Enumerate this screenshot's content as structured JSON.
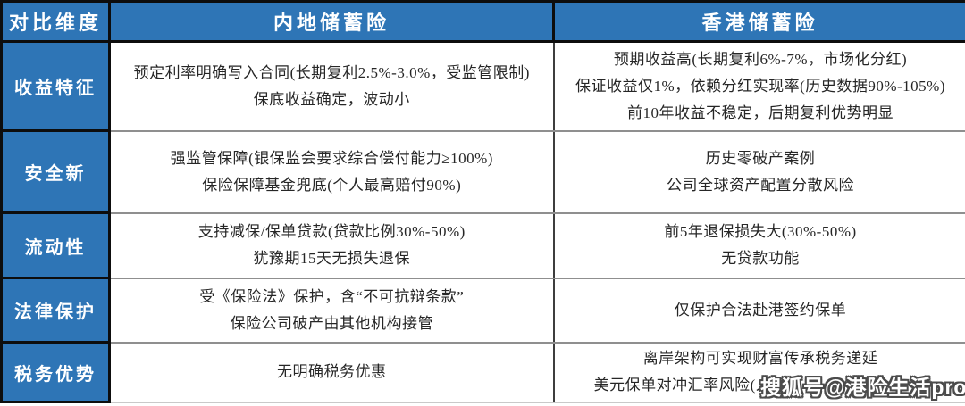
{
  "colors": {
    "header_blue": "#2E75B6",
    "border_dark": "#0D0D0D",
    "divider_gray": "#8F8F8F",
    "body_text": "#262626"
  },
  "table": {
    "header": {
      "dimension": "对比维度",
      "mainland": "内地储蓄险",
      "hongkong": "香港储蓄险"
    },
    "rows": [
      {
        "label": "收益特征",
        "mainland": [
          "预定利率明确写入合同(长期复利2.5%-3.0%，受监管限制)",
          "保底收益确定，波动小"
        ],
        "hongkong": [
          "预期收益高(长期复利6%-7%，市场化分红)",
          "保证收益仅1%，依赖分红实现率(历史数据90%-105%)",
          "前10年收益不稳定，后期复利优势明显"
        ]
      },
      {
        "label": "安全新",
        "mainland": [
          "强监管保障(银保监会要求综合偿付能力≥100%)",
          "保险保障基金兜底(个人最高赔付90%)"
        ],
        "hongkong": [
          "历史零破产案例",
          "公司全球资产配置分散风险"
        ]
      },
      {
        "label": "流动性",
        "mainland": [
          "支持减保/保单贷款(贷款比例30%-50%)",
          "犹豫期15天无损失退保"
        ],
        "hongkong": [
          "前5年退保损失大(30%-50%)",
          "无贷款功能"
        ]
      },
      {
        "label": "法律保护",
        "mainland": [
          "受《保险法》保护，含“不可抗辩条款”",
          "保险公司破产由其他机构接管"
        ],
        "hongkong": [
          "仅保护合法赴港签约保单"
        ]
      },
      {
        "label": "税务优势",
        "mainland": [
          "无明确税务优惠"
        ],
        "hongkong": [
          "离岸架构可实现财富传承税务递延",
          "美元保单对冲汇率风险(人"
        ],
        "hongkong_line2_suffix": ")"
      }
    ]
  },
  "watermark": {
    "text": "搜狐号@港险生活pro"
  }
}
